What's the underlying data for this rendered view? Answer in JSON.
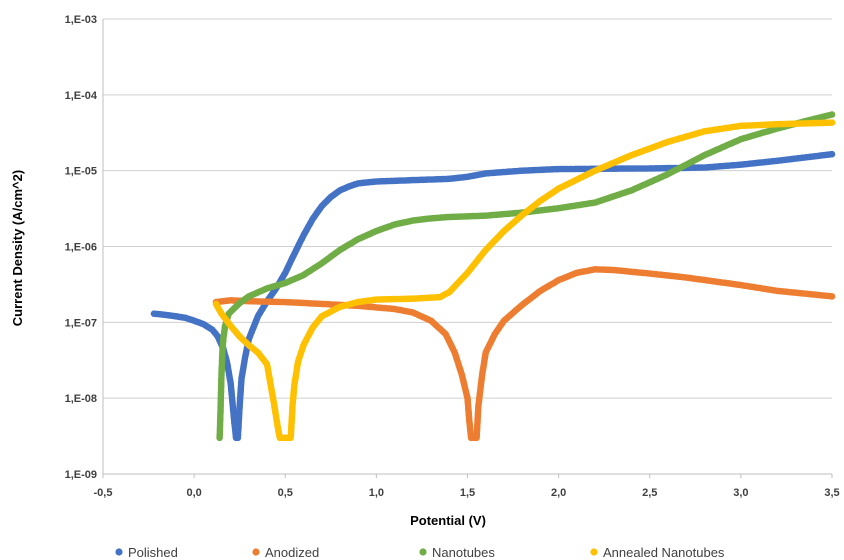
{
  "chart_data": {
    "type": "scatter",
    "title": "",
    "xlabel": "Potential (V)",
    "ylabel": "Current Density (A/cm^2)",
    "xlim": [
      -0.5,
      3.5
    ],
    "ylim": [
      1e-09,
      0.001
    ],
    "y_scale": "log",
    "grid": "horizontal",
    "legend_position": "bottom",
    "x_ticks": [
      -0.5,
      0.0,
      0.5,
      1.0,
      1.5,
      2.0,
      2.5,
      3.0,
      3.5
    ],
    "x_tick_labels": [
      "-0,5",
      "0,0",
      "0,5",
      "1,0",
      "1,5",
      "2,0",
      "2,5",
      "3,0",
      "3,5"
    ],
    "y_ticks": [
      1e-09,
      1e-08,
      1e-07,
      1e-06,
      1e-05,
      0.0001,
      0.001
    ],
    "y_tick_labels": [
      "1,E-09",
      "1,E-08",
      "1,E-07",
      "1,E-06",
      "1,E-05",
      "1,E-04",
      "1,E-03"
    ],
    "series": [
      {
        "name": "Polished",
        "color": "#4472C4",
        "points": [
          [
            -0.22,
            1.3e-07
          ],
          [
            -0.15,
            1.25e-07
          ],
          [
            -0.1,
            1.2e-07
          ],
          [
            -0.05,
            1.15e-07
          ],
          [
            0.0,
            1.05e-07
          ],
          [
            0.05,
            9.5e-08
          ],
          [
            0.1,
            8e-08
          ],
          [
            0.13,
            6.5e-08
          ],
          [
            0.16,
            4.5e-08
          ],
          [
            0.18,
            3e-08
          ],
          [
            0.2,
            1.6e-08
          ],
          [
            0.21,
            9e-09
          ],
          [
            0.22,
            5e-09
          ],
          [
            0.23,
            3e-09
          ],
          [
            0.24,
            3e-09
          ],
          [
            0.25,
            8e-09
          ],
          [
            0.26,
            1.8e-08
          ],
          [
            0.28,
            3.5e-08
          ],
          [
            0.3,
            6e-08
          ],
          [
            0.35,
            1.2e-07
          ],
          [
            0.4,
            1.9e-07
          ],
          [
            0.45,
            2.8e-07
          ],
          [
            0.5,
            4.5e-07
          ],
          [
            0.55,
            8e-07
          ],
          [
            0.6,
            1.4e-06
          ],
          [
            0.65,
            2.3e-06
          ],
          [
            0.7,
            3.4e-06
          ],
          [
            0.75,
            4.5e-06
          ],
          [
            0.8,
            5.5e-06
          ],
          [
            0.85,
            6.2e-06
          ],
          [
            0.9,
            6.8e-06
          ],
          [
            1.0,
            7.2e-06
          ],
          [
            1.2,
            7.5e-06
          ],
          [
            1.4,
            7.8e-06
          ],
          [
            1.5,
            8.3e-06
          ],
          [
            1.6,
            9.2e-06
          ],
          [
            1.8,
            1e-05
          ],
          [
            2.0,
            1.05e-05
          ],
          [
            2.5,
            1.07e-05
          ],
          [
            2.8,
            1.1e-05
          ],
          [
            3.0,
            1.2e-05
          ],
          [
            3.2,
            1.35e-05
          ],
          [
            3.5,
            1.65e-05
          ]
        ]
      },
      {
        "name": "Anodized",
        "color": "#ED7D31",
        "points": [
          [
            0.12,
            1.85e-07
          ],
          [
            0.2,
            1.95e-07
          ],
          [
            0.3,
            1.9e-07
          ],
          [
            0.5,
            1.85e-07
          ],
          [
            0.7,
            1.75e-07
          ],
          [
            0.9,
            1.65e-07
          ],
          [
            1.1,
            1.5e-07
          ],
          [
            1.2,
            1.35e-07
          ],
          [
            1.3,
            1.05e-07
          ],
          [
            1.38,
            7e-08
          ],
          [
            1.43,
            4e-08
          ],
          [
            1.47,
            2e-08
          ],
          [
            1.5,
            1e-08
          ],
          [
            1.51,
            5e-09
          ],
          [
            1.52,
            3e-09
          ],
          [
            1.55,
            3e-09
          ],
          [
            1.56,
            8e-09
          ],
          [
            1.58,
            2e-08
          ],
          [
            1.6,
            4e-08
          ],
          [
            1.65,
            7e-08
          ],
          [
            1.7,
            1.05e-07
          ],
          [
            1.8,
            1.7e-07
          ],
          [
            1.9,
            2.6e-07
          ],
          [
            2.0,
            3.6e-07
          ],
          [
            2.1,
            4.5e-07
          ],
          [
            2.2,
            5e-07
          ],
          [
            2.3,
            4.9e-07
          ],
          [
            2.5,
            4.4e-07
          ],
          [
            2.7,
            3.9e-07
          ],
          [
            3.0,
            3.1e-07
          ],
          [
            3.2,
            2.6e-07
          ],
          [
            3.5,
            2.2e-07
          ]
        ]
      },
      {
        "name": "Nanotubes",
        "color": "#70AD47",
        "points": [
          [
            0.14,
            3e-09
          ],
          [
            0.145,
            7e-09
          ],
          [
            0.15,
            2e-08
          ],
          [
            0.155,
            4e-08
          ],
          [
            0.16,
            6e-08
          ],
          [
            0.17,
            9e-08
          ],
          [
            0.19,
            1.3e-07
          ],
          [
            0.25,
            1.8e-07
          ],
          [
            0.3,
            2.2e-07
          ],
          [
            0.4,
            2.8e-07
          ],
          [
            0.5,
            3.3e-07
          ],
          [
            0.6,
            4.2e-07
          ],
          [
            0.7,
            6e-07
          ],
          [
            0.8,
            9e-07
          ],
          [
            0.9,
            1.25e-06
          ],
          [
            1.0,
            1.6e-06
          ],
          [
            1.1,
            1.95e-06
          ],
          [
            1.2,
            2.2e-06
          ],
          [
            1.3,
            2.35e-06
          ],
          [
            1.4,
            2.45e-06
          ],
          [
            1.6,
            2.55e-06
          ],
          [
            1.8,
            2.8e-06
          ],
          [
            2.0,
            3.2e-06
          ],
          [
            2.2,
            3.8e-06
          ],
          [
            2.4,
            5.5e-06
          ],
          [
            2.6,
            9e-06
          ],
          [
            2.8,
            1.6e-05
          ],
          [
            3.0,
            2.6e-05
          ],
          [
            3.2,
            3.6e-05
          ],
          [
            3.4,
            4.8e-05
          ],
          [
            3.5,
            5.5e-05
          ]
        ]
      },
      {
        "name": "Annealed Nanotubes",
        "color": "#FFC000",
        "points": [
          [
            0.12,
            1.75e-07
          ],
          [
            0.15,
            1.3e-07
          ],
          [
            0.2,
            9e-08
          ],
          [
            0.25,
            6.5e-08
          ],
          [
            0.3,
            5e-08
          ],
          [
            0.35,
            4e-08
          ],
          [
            0.4,
            2.8e-08
          ],
          [
            0.42,
            1.5e-08
          ],
          [
            0.44,
            8e-09
          ],
          [
            0.46,
            4e-09
          ],
          [
            0.47,
            3e-09
          ],
          [
            0.53,
            3e-09
          ],
          [
            0.54,
            8e-09
          ],
          [
            0.55,
            1.5e-08
          ],
          [
            0.57,
            3e-08
          ],
          [
            0.6,
            5e-08
          ],
          [
            0.65,
            8.5e-08
          ],
          [
            0.7,
            1.2e-07
          ],
          [
            0.8,
            1.6e-07
          ],
          [
            0.9,
            1.85e-07
          ],
          [
            1.0,
            2e-07
          ],
          [
            1.2,
            2.05e-07
          ],
          [
            1.35,
            2.15e-07
          ],
          [
            1.4,
            2.5e-07
          ],
          [
            1.5,
            4.5e-07
          ],
          [
            1.6,
            9e-07
          ],
          [
            1.7,
            1.6e-06
          ],
          [
            1.8,
            2.6e-06
          ],
          [
            1.9,
            4e-06
          ],
          [
            2.0,
            5.8e-06
          ],
          [
            2.2,
            1e-05
          ],
          [
            2.4,
            1.6e-05
          ],
          [
            2.6,
            2.4e-05
          ],
          [
            2.8,
            3.3e-05
          ],
          [
            3.0,
            3.9e-05
          ],
          [
            3.2,
            4.1e-05
          ],
          [
            3.5,
            4.3e-05
          ]
        ]
      }
    ]
  }
}
